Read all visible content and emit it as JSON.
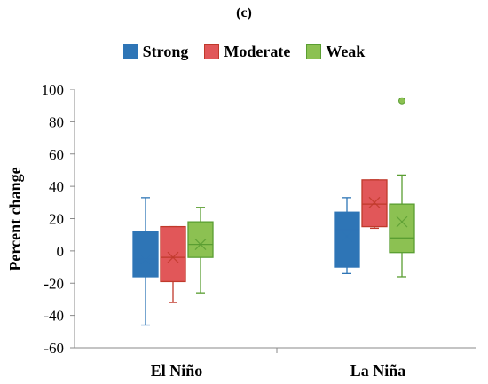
{
  "chart_data": {
    "type": "box",
    "panel_label": "(c)",
    "ylabel": "Percent change",
    "xlabel": "",
    "ylim": [
      -60,
      100
    ],
    "yticks": [
      100,
      80,
      60,
      40,
      20,
      0,
      -20,
      -40,
      -60
    ],
    "categories": [
      "El Niño",
      "La Niña"
    ],
    "legend_position": "top-center",
    "grid": false,
    "series": [
      {
        "name": "Strong",
        "color": "#2e75b6",
        "fill": "#2e75b6",
        "boxes": [
          {
            "min": -46,
            "q1": -16,
            "median": -5,
            "q3": 12,
            "max": 33,
            "mean": -5,
            "outliers": []
          },
          {
            "min": -14,
            "q1": -10,
            "median": 13,
            "q3": 24,
            "max": 33,
            "mean": 9,
            "outliers": []
          }
        ]
      },
      {
        "name": "Moderate",
        "color": "#c0392b",
        "fill": "#e15759",
        "boxes": [
          {
            "min": -32,
            "q1": -19,
            "median": -4,
            "q3": 15,
            "max": 15,
            "mean": -4,
            "outliers": []
          },
          {
            "min": 14,
            "q1": 15,
            "median": 29,
            "q3": 44,
            "max": 44,
            "mean": 30,
            "outliers": []
          }
        ]
      },
      {
        "name": "Weak",
        "color": "#5a9e32",
        "fill": "#8cc152",
        "boxes": [
          {
            "min": -26,
            "q1": -4,
            "median": 4,
            "q3": 18,
            "max": 27,
            "mean": 4,
            "outliers": []
          },
          {
            "min": -16,
            "q1": -1,
            "median": 8,
            "q3": 29,
            "max": 47,
            "mean": 18,
            "outliers": [
              93
            ]
          }
        ]
      }
    ]
  }
}
